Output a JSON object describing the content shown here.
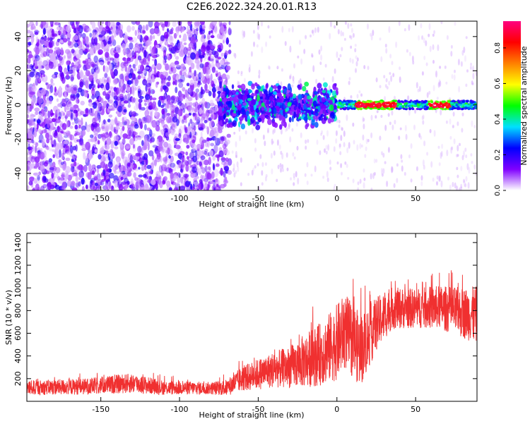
{
  "title": "C2E6.2022.324.20.01.R13",
  "chart_data": [
    {
      "type": "heatmap",
      "xlabel": "Height of straight line (km)",
      "ylabel": "Frequency (Hz)",
      "xlim": [
        -197,
        89
      ],
      "ylim": [
        -50,
        49
      ],
      "xticks": [
        -150,
        -100,
        -50,
        0,
        50
      ],
      "yticks": [
        -40,
        -20,
        0,
        20,
        40
      ],
      "colorbar": {
        "label": "Normalized spectral amplitude",
        "range": [
          0,
          0.95
        ],
        "ticks": [
          "0.0",
          "0.2",
          "0.4",
          "0.6",
          "0.8"
        ],
        "stops": [
          "#ffffff",
          "#8000ff",
          "#0000ff",
          "#00e0ff",
          "#00ff00",
          "#ffff00",
          "#ff8000",
          "#ff0000",
          "#ff0080"
        ]
      },
      "features": {
        "noise_region_x": [
          -197,
          -68
        ],
        "signal_onset_x": -75,
        "strong_band_x": [
          0,
          89
        ],
        "strong_band_freq": 0,
        "peak_amplitude_x": [
          [
            12,
            38
          ],
          [
            58,
            72
          ]
        ]
      }
    },
    {
      "type": "line",
      "xlabel": "Height of straight line (km)",
      "ylabel": "SNR (10 * v/v)",
      "xlim": [
        -197,
        89
      ],
      "ylim": [
        0,
        1480
      ],
      "xticks": [
        -150,
        -100,
        -50,
        0,
        50
      ],
      "yticks": [
        200,
        400,
        600,
        800,
        1000,
        1200,
        1400
      ],
      "color": "#f03030",
      "envelope": {
        "x": [
          -197,
          -160,
          -130,
          -110,
          -80,
          -70,
          -60,
          -50,
          -40,
          -30,
          -20,
          -10,
          0,
          5,
          15,
          20,
          25,
          35,
          50,
          65,
          80,
          89
        ],
        "mean": [
          120,
          130,
          160,
          120,
          115,
          120,
          200,
          240,
          280,
          300,
          360,
          420,
          520,
          620,
          450,
          560,
          680,
          820,
          820,
          830,
          780,
          760
        ],
        "spread": [
          80,
          90,
          110,
          80,
          70,
          90,
          140,
          170,
          200,
          230,
          300,
          350,
          420,
          420,
          400,
          350,
          300,
          230,
          220,
          240,
          280,
          320
        ]
      }
    }
  ]
}
